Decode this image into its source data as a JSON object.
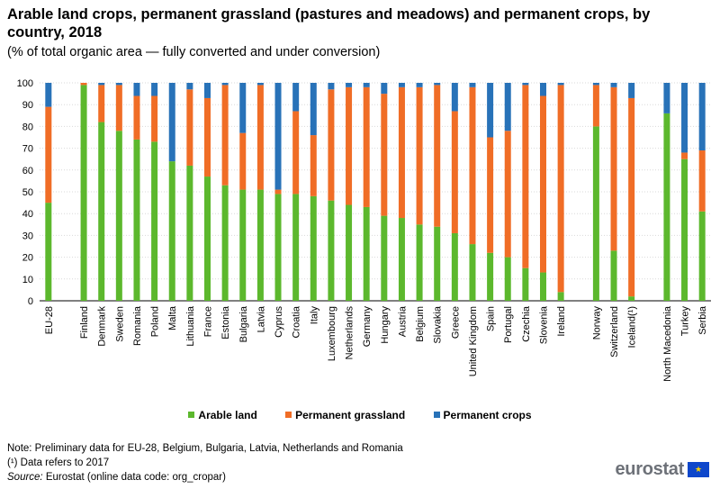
{
  "title": "Arable land crops, permanent grassland (pastures and meadows) and permanent crops, by country, 2018",
  "subtitle": "(% of total organic area — fully converted and under conversion)",
  "legend": [
    {
      "label": "Arable land",
      "color": "#5cb82d"
    },
    {
      "label": "Permanent grassland",
      "color": "#f06d26"
    },
    {
      "label": "Permanent crops",
      "color": "#2872b8"
    }
  ],
  "notes": {
    "note1": "Note: Preliminary data for EU-28, Belgium, Bulgaria, Latvia, Netherlands and Romania",
    "note2": "(¹) Data refers to 2017",
    "source_label": "Source:",
    "source_text": " Eurostat (online data code: org_cropar)"
  },
  "logo": {
    "text": "eurostat",
    "flag_glyph": "★"
  },
  "chart_data": {
    "type": "bar",
    "stacked": true,
    "ylim": [
      0,
      100
    ],
    "yticks": [
      0,
      10,
      20,
      30,
      40,
      50,
      60,
      70,
      80,
      90,
      100
    ],
    "grid": true,
    "legend_position": "bottom",
    "categories": [
      "EU-28",
      "",
      "Finland",
      "Denmark",
      "Sweden",
      "Romania",
      "Poland",
      "Malta",
      "Lithuania",
      "France",
      "Estonia",
      "Bulgaria",
      "Latvia",
      "Cyprus",
      "Croatia",
      "Italy",
      "Luxembourg",
      "Netherlands",
      "Germany",
      "Hungary",
      "Austria",
      "Belgium",
      "Slovakia",
      "Greece",
      "United Kingdom",
      "Spain",
      "Portugal",
      "Czechia",
      "Slovenia",
      "Ireland",
      "",
      "Norway",
      "Switzerland",
      "Iceland(¹)",
      "",
      "North Macedonia",
      "Turkey",
      "Serbia"
    ],
    "series": [
      {
        "name": "Arable land",
        "color": "#5cb82d",
        "values": [
          45,
          null,
          99,
          82,
          78,
          74,
          73,
          64,
          62,
          57,
          53,
          51,
          51,
          49,
          49,
          48,
          46,
          44,
          43,
          39,
          38,
          35,
          34,
          31,
          26,
          22,
          20,
          15,
          13,
          4,
          null,
          80,
          23,
          2,
          null,
          86,
          65,
          41
        ]
      },
      {
        "name": "Permanent grassland",
        "color": "#f06d26",
        "values": [
          44,
          null,
          1,
          17,
          21,
          20,
          21,
          0,
          35,
          36,
          46,
          26,
          48,
          2,
          38,
          28,
          51,
          54,
          55,
          56,
          60,
          63,
          65,
          56,
          72,
          53,
          58,
          84,
          81,
          95,
          null,
          19,
          75,
          91,
          null,
          0,
          3,
          28
        ]
      },
      {
        "name": "Permanent crops",
        "color": "#2872b8",
        "values": [
          11,
          null,
          0,
          1,
          1,
          6,
          6,
          36,
          3,
          7,
          1,
          23,
          1,
          49,
          13,
          24,
          3,
          2,
          2,
          5,
          2,
          2,
          1,
          13,
          2,
          25,
          22,
          1,
          6,
          1,
          null,
          1,
          2,
          7,
          null,
          14,
          32,
          31
        ]
      }
    ]
  }
}
